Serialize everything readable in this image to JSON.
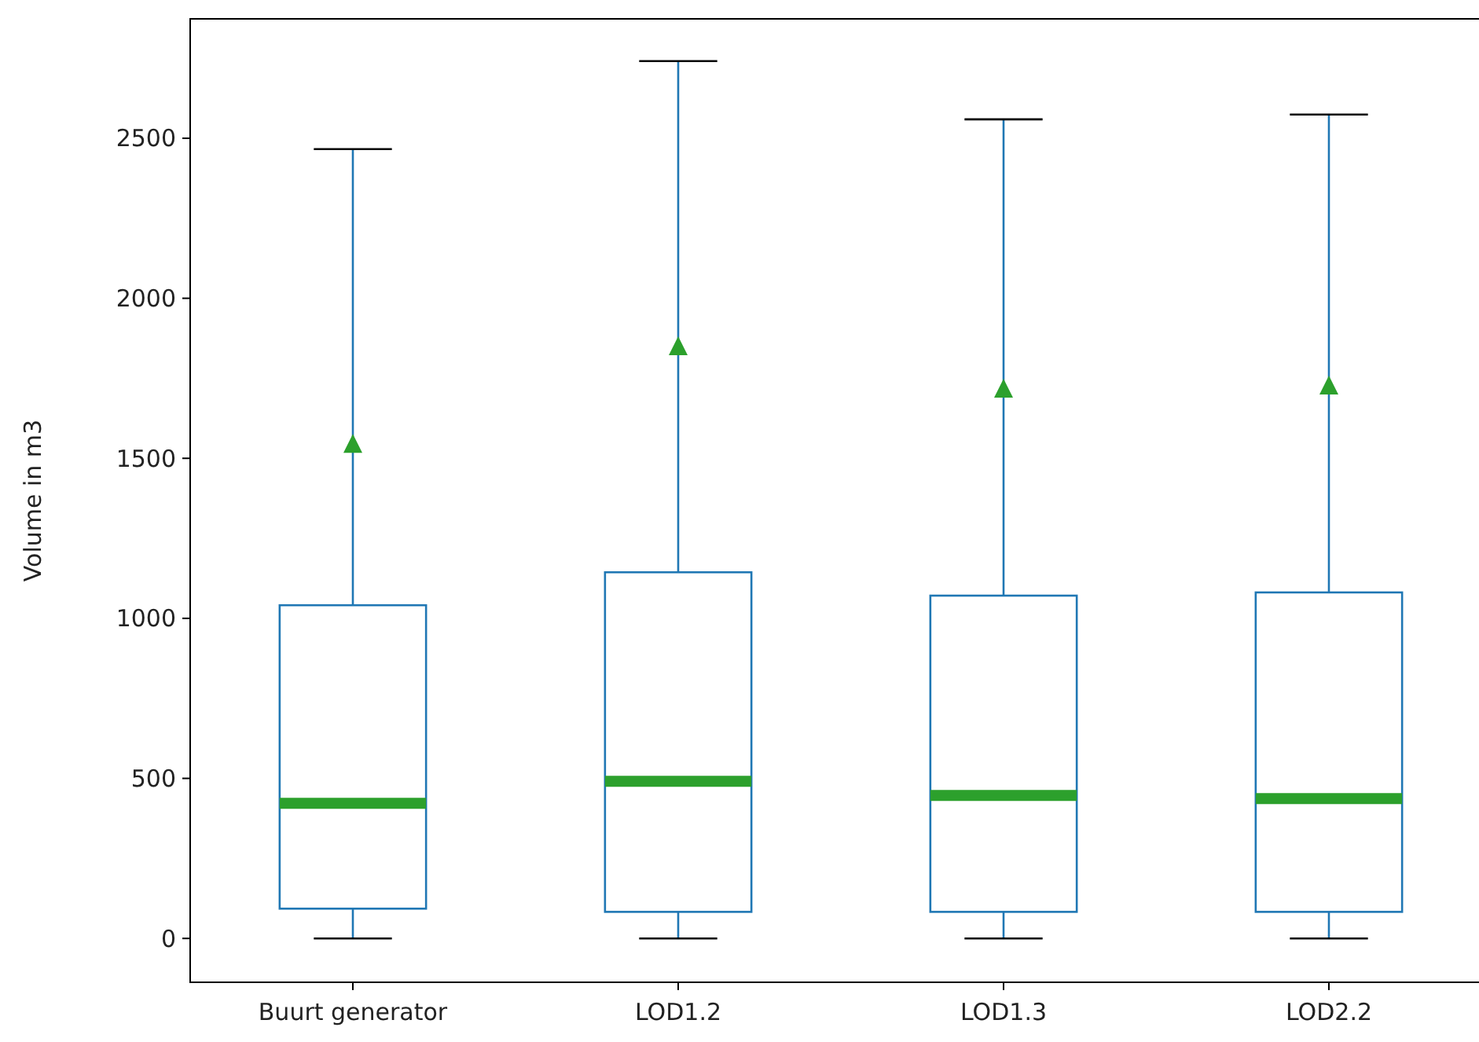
{
  "chart_data": {
    "type": "box",
    "ylabel": "Volume in m3",
    "categories": [
      "Buurt generator",
      "LOD1.2",
      "LOD1.3",
      "LOD2.2"
    ],
    "boxes": [
      {
        "low": 0,
        "q1": 93,
        "median": 422,
        "q3": 1041,
        "high": 2466,
        "mean": 1542
      },
      {
        "low": 0,
        "q1": 83,
        "median": 491,
        "q3": 1144,
        "high": 2741,
        "mean": 1847
      },
      {
        "low": 0,
        "q1": 83,
        "median": 447,
        "q3": 1071,
        "high": 2559,
        "mean": 1714
      },
      {
        "low": 0,
        "q1": 83,
        "median": 437,
        "q3": 1081,
        "high": 2574,
        "mean": 1724
      }
    ],
    "color": "#1f77b4",
    "marker": "triangle",
    "ylim": [
      -137,
      2873
    ],
    "yticks": [
      0,
      500,
      1000,
      1500,
      2000,
      2500
    ],
    "grid": false
  }
}
